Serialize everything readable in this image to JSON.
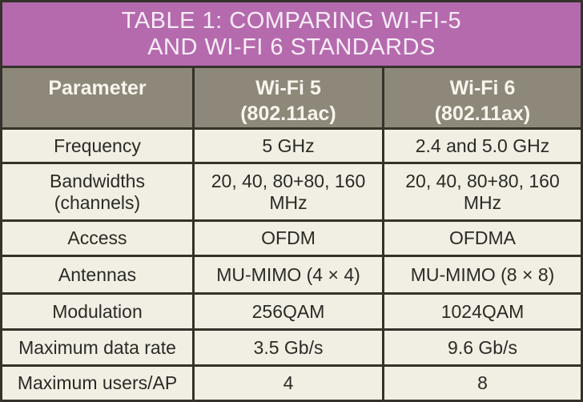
{
  "figure": {
    "title_line1": "TABLE 1: COMPARING WI-FI-5",
    "title_line2": "AND WI-FI 6 STANDARDS"
  },
  "table": {
    "columns": [
      {
        "label": "Parameter",
        "sub": ""
      },
      {
        "label": "Wi-Fi 5",
        "sub": "(802.11ac)"
      },
      {
        "label": "Wi-Fi 6",
        "sub": "(802.11ax)"
      }
    ],
    "rows": [
      {
        "parameter": "Frequency",
        "wifi5": "5 GHz",
        "wifi6": "2.4 and 5.0 GHz"
      },
      {
        "parameter": "Bandwidths (channels)",
        "wifi5": "20, 40, 80+80, 160 MHz",
        "wifi6": "20, 40, 80+80, 160 MHz"
      },
      {
        "parameter": "Access",
        "wifi5": "OFDM",
        "wifi6": "OFDMA"
      },
      {
        "parameter": "Antennas",
        "wifi5": "MU-MIMO (4 × 4)",
        "wifi6": "MU-MIMO (8 × 8)"
      },
      {
        "parameter": "Modulation",
        "wifi5": "256QAM",
        "wifi6": "1024QAM"
      },
      {
        "parameter": "Maximum data rate",
        "wifi5": "3.5 Gb/s",
        "wifi6": "9.6 Gb/s"
      },
      {
        "parameter": "Maximum users/AP",
        "wifi5": "4",
        "wifi6": "8"
      }
    ]
  },
  "colors": {
    "title_background": "#b56aae",
    "title_text": "#f9edf8",
    "header_background": "#8e887a",
    "header_text": "#f8f5ed",
    "body_background": "#f1eee3",
    "body_text": "#2b2a26",
    "border": "#35322b"
  }
}
